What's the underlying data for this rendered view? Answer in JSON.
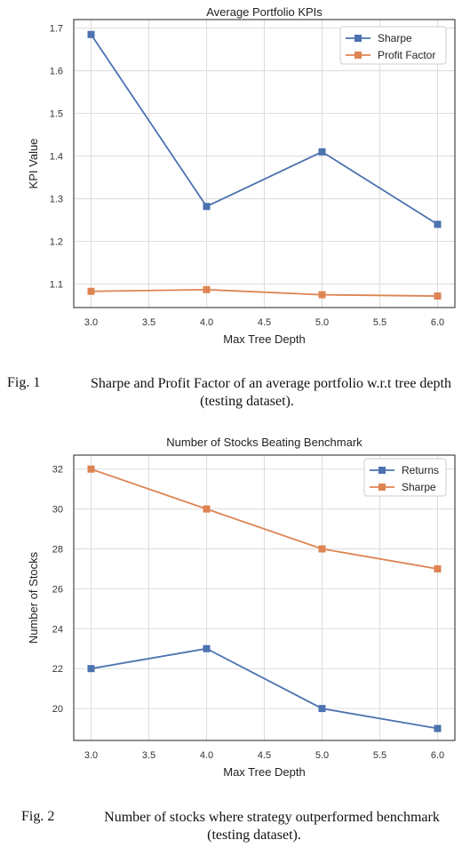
{
  "chart_data": [
    {
      "type": "line",
      "title": "Average Portfolio KPIs",
      "xlabel": "Max Tree Depth",
      "ylabel": "KPI Value",
      "x": [
        3.0,
        4.0,
        5.0,
        6.0
      ],
      "xticks": [
        "3.0",
        "3.5",
        "4.0",
        "4.5",
        "5.0",
        "5.5",
        "6.0"
      ],
      "yticks": [
        "1.1",
        "1.2",
        "1.3",
        "1.4",
        "1.5",
        "1.6",
        "1.7"
      ],
      "xlim": [
        2.85,
        6.15
      ],
      "ylim": [
        1.045,
        1.72
      ],
      "grid": true,
      "legend": "top-right",
      "series": [
        {
          "name": "Sharpe",
          "color": "#4c72b0",
          "values": [
            1.685,
            1.282,
            1.41,
            1.24
          ]
        },
        {
          "name": "Profit Factor",
          "color": "#dd8452",
          "values": [
            1.083,
            1.087,
            1.075,
            1.072
          ]
        }
      ]
    },
    {
      "type": "line",
      "title": "Number of Stocks Beating Benchmark",
      "xlabel": "Max Tree Depth",
      "ylabel": "Number of Stocks",
      "x": [
        3.0,
        4.0,
        5.0,
        6.0
      ],
      "xticks": [
        "3.0",
        "3.5",
        "4.0",
        "4.5",
        "5.0",
        "5.5",
        "6.0"
      ],
      "yticks": [
        "20",
        "22",
        "24",
        "26",
        "28",
        "30",
        "32"
      ],
      "xlim": [
        2.85,
        6.15
      ],
      "ylim": [
        18.4,
        32.7
      ],
      "grid": true,
      "legend": "top-right",
      "series": [
        {
          "name": "Returns",
          "color": "#4c72b0",
          "values": [
            22,
            23,
            20,
            19
          ]
        },
        {
          "name": "Sharpe",
          "color": "#dd8452",
          "values": [
            32,
            30,
            28,
            27
          ]
        }
      ]
    }
  ],
  "captions": [
    {
      "number": "Fig. 1",
      "line1": "Sharpe and Profit Factor of an average portfolio w.r.t tree depth",
      "line2": "(testing dataset)."
    },
    {
      "number": "Fig. 2",
      "line1": "Number of stocks where strategy outperformed benchmark",
      "line2": "(testing dataset)."
    }
  ]
}
